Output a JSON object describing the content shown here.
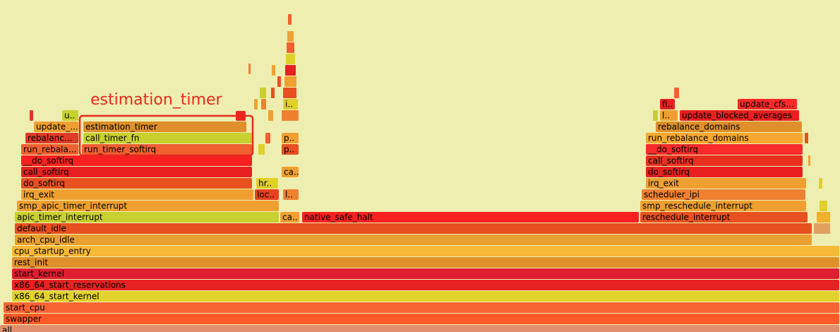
{
  "annotation": "estimation_timer",
  "frames": [
    {
      "label": "all"
    },
    {
      "label": "swapper"
    },
    {
      "label": "start_cpu"
    },
    {
      "label": "x86_64_start_kernel"
    },
    {
      "label": "x86_64_start_reservations"
    },
    {
      "label": "start_kernel"
    },
    {
      "label": "rest_init"
    },
    {
      "label": "cpu_startup_entry"
    },
    {
      "label": "arch_cpu_idle"
    },
    {
      "label": "default_idle"
    },
    {
      "label": "apic_timer_interrupt"
    },
    {
      "label": "ca.."
    },
    {
      "label": "native_safe_halt"
    },
    {
      "label": "reschedule_interrupt"
    },
    {
      "label": "smp_apic_timer_interrupt"
    },
    {
      "label": "smp_reschedule_interrupt"
    },
    {
      "label": "irq_exit"
    },
    {
      "label": "loc.."
    },
    {
      "label": "l.."
    },
    {
      "label": "scheduler_ipi"
    },
    {
      "label": "do_softirq"
    },
    {
      "label": "hr.."
    },
    {
      "label": "irq_exit"
    },
    {
      "label": "call_softirq"
    },
    {
      "label": "ca.."
    },
    {
      "label": "do_softirq"
    },
    {
      "label": "__do_softirq"
    },
    {
      "label": "call_softirq"
    },
    {
      "label": "run_rebala..."
    },
    {
      "label": "run_timer_softirq"
    },
    {
      "label": "p.."
    },
    {
      "label": "__do_softirq"
    },
    {
      "label": "rebalanc..."
    },
    {
      "label": "call_timer_fn"
    },
    {
      "label": "p.."
    },
    {
      "label": "run_rebalance_domains"
    },
    {
      "label": "update_..."
    },
    {
      "label": "estimation_timer"
    },
    {
      "label": "rebalance_domains"
    },
    {
      "label": "u.."
    },
    {
      "label": "l.."
    },
    {
      "label": "update_blocked_averages"
    },
    {
      "label": "i.."
    },
    {
      "label": "fi.."
    },
    {
      "label": "update_cfs..."
    }
  ]
}
